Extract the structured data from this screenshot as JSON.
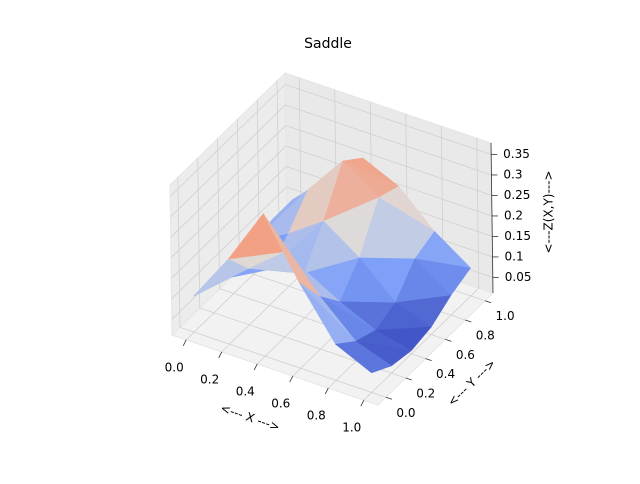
{
  "chart_data": {
    "type": "surface3d",
    "title": "Saddle",
    "xlabel": "<--- X --->",
    "ylabel": "<--- Y --->",
    "zlabel": "<---Z(X,Y)--->",
    "colormap": "coolwarm",
    "grid": true,
    "x": [
      0,
      0.2,
      0.4,
      0.6,
      0.8,
      1.0
    ],
    "y": [
      0,
      0.2,
      0.4,
      0.6,
      0.8,
      1.0
    ],
    "z": [
      [
        0.1,
        0.09,
        0.08,
        0.09,
        0.1,
        0.1
      ],
      [
        0.22,
        0.15,
        0.1,
        0.14,
        0.2,
        0.18
      ],
      [
        0.36,
        0.22,
        0.12,
        0.2,
        0.3,
        0.26
      ],
      [
        0.22,
        0.14,
        0.08,
        0.14,
        0.24,
        0.22
      ],
      [
        0.1,
        0.06,
        0.04,
        0.06,
        0.12,
        0.14
      ],
      [
        0.06,
        0.03,
        0.02,
        0.03,
        0.06,
        0.08
      ]
    ],
    "xlim": [
      -0.08,
      1.08
    ],
    "ylim": [
      -0.08,
      1.08
    ],
    "zlim": [
      0.012,
      0.378
    ],
    "xticks": [
      {
        "value": 0,
        "label": "0.0"
      },
      0.2,
      0.4,
      0.6,
      0.8,
      {
        "value": 1,
        "label": "1.0"
      }
    ],
    "yticks": [
      {
        "value": 0,
        "label": "0.0"
      },
      0.2,
      0.4,
      0.6,
      0.8,
      {
        "value": 1,
        "label": "1.0"
      }
    ],
    "zticks": [
      0.05,
      0.1,
      0.15,
      0.2,
      0.25,
      0.3,
      0.35
    ]
  }
}
